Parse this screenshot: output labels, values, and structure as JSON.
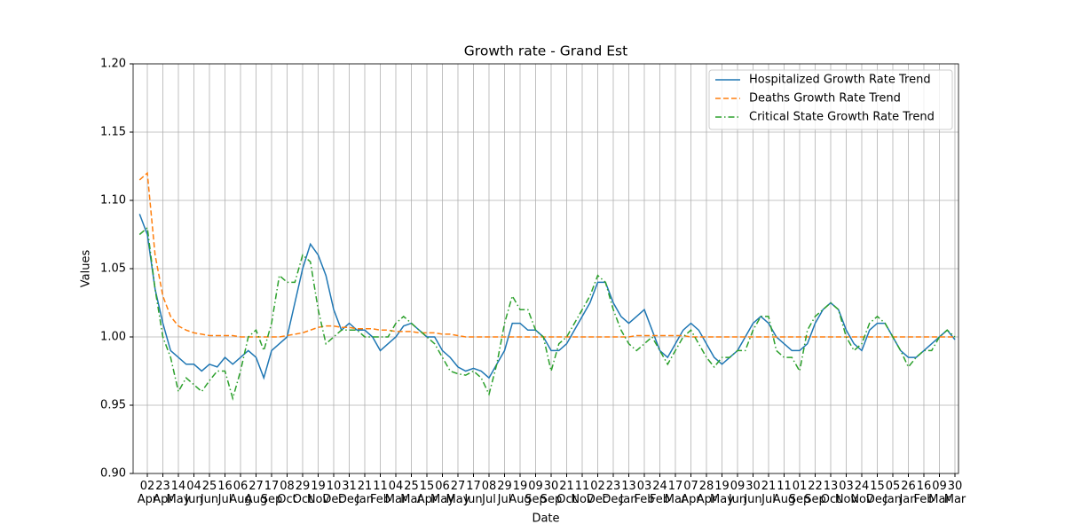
{
  "chart_data": {
    "type": "line",
    "title": "Growth rate - Grand Est",
    "xlabel": "Date",
    "ylabel": "Values",
    "categories": [
      null,
      "02\nApr",
      null,
      "23\nApr",
      null,
      "14\nMay",
      null,
      "04\nJun",
      null,
      "25\nJun",
      null,
      "16\nJul",
      null,
      "06\nAug",
      null,
      "27\nAug",
      null,
      "17\nSep",
      null,
      "08\nOct",
      null,
      "29\nOct",
      null,
      "19\nNov",
      null,
      "10\nDec",
      null,
      "31\nDec",
      null,
      "21\nJan",
      null,
      "11\nFeb",
      null,
      "04\nMar",
      null,
      "25\nMar",
      null,
      "15\nApr",
      null,
      "06\nMay",
      null,
      "27\nMay",
      null,
      "17\nJun",
      null,
      "08\nJul",
      null,
      "29\nJul",
      null,
      "19\nAug",
      null,
      "09\nSep",
      null,
      "30\nSep",
      null,
      "21\nOct",
      null,
      "11\nNov",
      null,
      "02\nDec",
      null,
      "23\nDec",
      null,
      "13\nJan",
      null,
      "03\nFeb",
      null,
      "24\nFeb",
      null,
      "17\nMar",
      null,
      "07\nApr",
      null,
      "28\nApr",
      null,
      "19\nMay",
      null,
      "09\nJun",
      null,
      "30\nJun",
      null,
      "21\nJul",
      null,
      "11\nAug",
      null,
      "01\nSep",
      null,
      "22\nSep",
      null,
      "13\nOct",
      null,
      "03\nNov",
      null,
      "24\nNov",
      null,
      "15\nDec",
      null,
      "05\nJan",
      null,
      "26\nJan",
      null,
      "16\nFeb",
      null,
      "09\nMar",
      null,
      "30\nMar"
    ],
    "series": [
      {
        "name": "Hospitalized Growth Rate Trend",
        "color": "#1f77b4",
        "dash": "solid",
        "values": [
          1.09,
          1.075,
          1.035,
          1.01,
          0.99,
          0.985,
          0.98,
          0.98,
          0.975,
          0.98,
          0.978,
          0.985,
          0.98,
          0.985,
          0.99,
          0.985,
          0.97,
          0.99,
          0.995,
          1.0,
          1.025,
          1.05,
          1.068,
          1.06,
          1.045,
          1.02,
          1.005,
          1.01,
          1.005,
          1.005,
          1.0,
          0.99,
          0.995,
          1.0,
          1.008,
          1.01,
          1.005,
          1.0,
          1.0,
          0.99,
          0.985,
          0.978,
          0.975,
          0.977,
          0.975,
          0.97,
          0.98,
          0.99,
          1.01,
          1.01,
          1.005,
          1.005,
          1.0,
          0.99,
          0.99,
          0.995,
          1.005,
          1.015,
          1.025,
          1.04,
          1.04,
          1.025,
          1.015,
          1.01,
          1.015,
          1.02,
          1.005,
          0.99,
          0.985,
          0.995,
          1.005,
          1.01,
          1.005,
          0.995,
          0.985,
          0.98,
          0.985,
          0.99,
          1.0,
          1.01,
          1.015,
          1.01,
          1.0,
          0.995,
          0.99,
          0.99,
          0.995,
          1.01,
          1.02,
          1.025,
          1.02,
          1.005,
          0.995,
          0.99,
          1.005,
          1.01,
          1.01,
          1.0,
          0.99,
          0.985,
          0.985,
          0.99,
          0.995,
          1.0,
          1.005,
          0.998
        ]
      },
      {
        "name": "Deaths Growth Rate Trend",
        "color": "#ff7f0e",
        "dash": "dashed",
        "values": [
          1.115,
          1.12,
          1.06,
          1.03,
          1.015,
          1.008,
          1.005,
          1.003,
          1.002,
          1.001,
          1.001,
          1.001,
          1.001,
          1.0,
          1.0,
          1.0,
          1.0,
          1.0,
          1.0,
          1.001,
          1.002,
          1.003,
          1.005,
          1.007,
          1.008,
          1.008,
          1.007,
          1.007,
          1.006,
          1.006,
          1.006,
          1.005,
          1.005,
          1.004,
          1.004,
          1.004,
          1.003,
          1.003,
          1.003,
          1.002,
          1.002,
          1.001,
          1.0,
          1.0,
          1.0,
          1.0,
          1.0,
          1.0,
          1.0,
          1.0,
          1.0,
          1.0,
          1.0,
          1.0,
          1.0,
          1.0,
          1.0,
          1.0,
          1.0,
          1.0,
          1.0,
          1.0,
          1.0,
          1.0,
          1.001,
          1.001,
          1.001,
          1.001,
          1.001,
          1.001,
          1.001,
          1.0,
          1.0,
          1.0,
          1.0,
          1.0,
          1.0,
          1.0,
          1.0,
          1.0,
          1.0,
          1.0,
          1.0,
          1.0,
          1.0,
          1.0,
          1.0,
          1.0,
          1.0,
          1.0,
          1.0,
          1.0,
          1.0,
          1.0,
          1.0,
          1.0,
          1.0,
          1.0,
          1.0,
          1.0,
          1.0,
          1.0,
          1.0,
          1.0,
          1.0,
          1.0
        ]
      },
      {
        "name": "Critical State Growth Rate Trend",
        "color": "#2ca02c",
        "dash": "dashdot",
        "values": [
          1.075,
          1.08,
          1.035,
          1.0,
          0.985,
          0.96,
          0.97,
          0.965,
          0.96,
          0.968,
          0.975,
          0.975,
          0.955,
          0.975,
          1.0,
          1.005,
          0.99,
          1.01,
          1.045,
          1.04,
          1.04,
          1.06,
          1.055,
          1.02,
          0.995,
          1.0,
          1.005,
          1.005,
          1.005,
          1.0,
          1.0,
          1.0,
          1.0,
          1.01,
          1.015,
          1.01,
          1.005,
          1.0,
          0.995,
          0.985,
          0.975,
          0.973,
          0.972,
          0.975,
          0.97,
          0.958,
          0.98,
          1.01,
          1.03,
          1.02,
          1.02,
          1.005,
          1.0,
          0.975,
          0.995,
          1.0,
          1.01,
          1.02,
          1.03,
          1.045,
          1.04,
          1.02,
          1.005,
          0.995,
          0.99,
          0.995,
          1.0,
          0.99,
          0.98,
          0.99,
          1.0,
          1.005,
          0.995,
          0.985,
          0.978,
          0.985,
          0.985,
          0.99,
          0.99,
          1.005,
          1.015,
          1.015,
          0.99,
          0.985,
          0.985,
          0.975,
          1.005,
          1.015,
          1.02,
          1.025,
          1.02,
          1.0,
          0.99,
          0.995,
          1.01,
          1.015,
          1.01,
          1.0,
          0.99,
          0.978,
          0.985,
          0.99,
          0.99,
          1.0,
          1.005,
          1.0
        ]
      }
    ],
    "ylim": [
      0.9,
      1.2
    ],
    "yticks": [
      {
        "value": 0.9,
        "label": "0.90"
      },
      {
        "value": 0.95,
        "label": "0.95"
      },
      {
        "value": 1.0,
        "label": "1.00"
      },
      {
        "value": 1.05,
        "label": "1.05"
      },
      {
        "value": 1.1,
        "label": "1.10"
      },
      {
        "value": 1.15,
        "label": "1.15"
      },
      {
        "value": 1.2,
        "label": "1.20"
      }
    ],
    "grid": true,
    "legend": "upper right"
  }
}
